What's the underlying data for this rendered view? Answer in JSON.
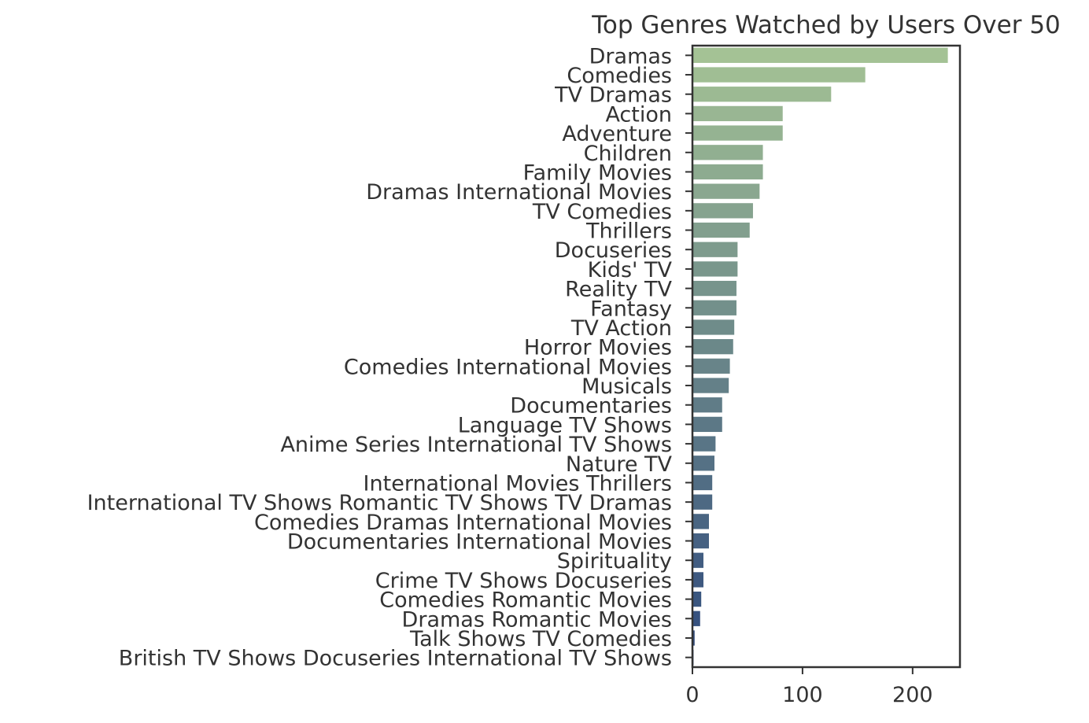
{
  "chart_data": {
    "type": "bar",
    "orientation": "horizontal",
    "title": "Top Genres Watched by Users Over 50",
    "xlabel": "",
    "ylabel": "",
    "xlim": [
      0,
      243
    ],
    "xticks": [
      0,
      100,
      200
    ],
    "grid": false,
    "legend": "none",
    "color_gradient": [
      "#a4c295",
      "#2f4a7d"
    ],
    "categories": [
      "Dramas",
      "Comedies",
      "TV Dramas",
      "Action",
      "Adventure",
      "Children",
      "Family Movies",
      "Dramas International Movies",
      "TV Comedies",
      "Thrillers",
      "Docuseries",
      "Kids' TV",
      "Reality TV",
      "Fantasy",
      "TV Action",
      "Horror Movies",
      "Comedies International Movies",
      "Musicals",
      "Documentaries",
      "Language TV Shows",
      "Anime Series International TV Shows",
      "Nature TV",
      "International Movies Thrillers",
      "International TV Shows Romantic TV Shows TV Dramas",
      "Comedies Dramas International Movies",
      "Documentaries International Movies",
      "Spirituality",
      "Crime TV Shows Docuseries",
      "Comedies Romantic Movies",
      "Dramas Romantic Movies",
      "Talk Shows TV Comedies",
      "British TV Shows Docuseries International TV Shows"
    ],
    "values": [
      232,
      157,
      126,
      82,
      82,
      64,
      64,
      61,
      55,
      52,
      41,
      41,
      40,
      40,
      38,
      37,
      34,
      33,
      27,
      27,
      21,
      20,
      18,
      18,
      15,
      15,
      10,
      10,
      8,
      7,
      2,
      1
    ]
  }
}
